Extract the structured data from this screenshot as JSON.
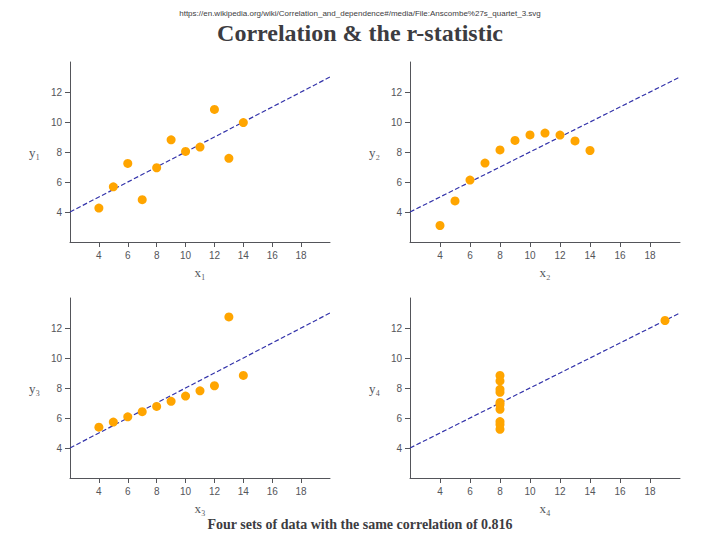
{
  "chart_data": [
    {
      "type": "scatter",
      "title": "Correlation & the r-statistic",
      "subtitle": "Four sets of data with the same correlation of 0.816",
      "annotations": [
        "https://en.wikipedia.org/wiki/Correlation_and_dependence#/media/File:Anscombe%27s_quartet_3.svg"
      ],
      "xlabel": "x₁",
      "ylabel": "y₁",
      "xlim": [
        2,
        20
      ],
      "ylim": [
        2,
        14
      ],
      "xticks": [
        4,
        6,
        8,
        10,
        12,
        14,
        16,
        18
      ],
      "yticks": [
        4,
        6,
        8,
        10,
        12
      ],
      "grid": false,
      "series": [
        {
          "type": "line",
          "color": "#3333AA",
          "line_style": "dashed",
          "x": [
            2,
            20
          ],
          "values": [
            4,
            13
          ]
        },
        {
          "type": "scatter",
          "color": "#FFA500",
          "marker": "circle",
          "x": [
            10,
            8,
            13,
            9,
            11,
            14,
            6,
            4,
            12,
            7,
            5
          ],
          "values": [
            8.04,
            6.95,
            7.58,
            8.81,
            8.33,
            9.96,
            7.24,
            4.26,
            10.84,
            4.82,
            5.68
          ]
        }
      ]
    },
    {
      "type": "scatter",
      "xlabel": "x₂",
      "ylabel": "y₂",
      "xlim": [
        2,
        20
      ],
      "ylim": [
        2,
        14
      ],
      "xticks": [
        4,
        6,
        8,
        10,
        12,
        14,
        16,
        18
      ],
      "yticks": [
        4,
        6,
        8,
        10,
        12
      ],
      "grid": false,
      "series": [
        {
          "type": "line",
          "color": "#3333AA",
          "line_style": "dashed",
          "x": [
            2,
            20
          ],
          "values": [
            4,
            13
          ]
        },
        {
          "type": "scatter",
          "color": "#FFA500",
          "marker": "circle",
          "x": [
            10,
            8,
            13,
            9,
            11,
            14,
            6,
            4,
            12,
            7,
            5
          ],
          "values": [
            9.14,
            8.14,
            8.74,
            8.77,
            9.26,
            8.1,
            6.13,
            3.1,
            9.13,
            7.26,
            4.74
          ]
        }
      ]
    },
    {
      "type": "scatter",
      "xlabel": "x₃",
      "ylabel": "y₃",
      "xlim": [
        2,
        20
      ],
      "ylim": [
        2,
        14
      ],
      "xticks": [
        4,
        6,
        8,
        10,
        12,
        14,
        16,
        18
      ],
      "yticks": [
        4,
        6,
        8,
        10,
        12
      ],
      "grid": false,
      "series": [
        {
          "type": "line",
          "color": "#3333AA",
          "line_style": "dashed",
          "x": [
            2,
            20
          ],
          "values": [
            4,
            13
          ]
        },
        {
          "type": "scatter",
          "color": "#FFA500",
          "marker": "circle",
          "x": [
            10,
            8,
            13,
            9,
            11,
            14,
            6,
            4,
            12,
            7,
            5
          ],
          "values": [
            7.46,
            6.77,
            12.74,
            7.11,
            7.81,
            8.84,
            6.08,
            5.39,
            8.15,
            6.42,
            5.73
          ]
        }
      ]
    },
    {
      "type": "scatter",
      "xlabel": "x₄",
      "ylabel": "y₄",
      "xlim": [
        2,
        20
      ],
      "ylim": [
        2,
        14
      ],
      "xticks": [
        4,
        6,
        8,
        10,
        12,
        14,
        16,
        18
      ],
      "yticks": [
        4,
        6,
        8,
        10,
        12
      ],
      "grid": false,
      "series": [
        {
          "type": "line",
          "color": "#3333AA",
          "line_style": "dashed",
          "x": [
            2,
            20
          ],
          "values": [
            4,
            13
          ]
        },
        {
          "type": "scatter",
          "color": "#FFA500",
          "marker": "circle",
          "x": [
            8,
            8,
            8,
            8,
            8,
            8,
            8,
            19,
            8,
            8,
            8
          ],
          "values": [
            6.58,
            5.76,
            7.71,
            8.84,
            8.47,
            7.04,
            5.25,
            12.5,
            5.56,
            7.91,
            6.89
          ]
        }
      ]
    }
  ]
}
